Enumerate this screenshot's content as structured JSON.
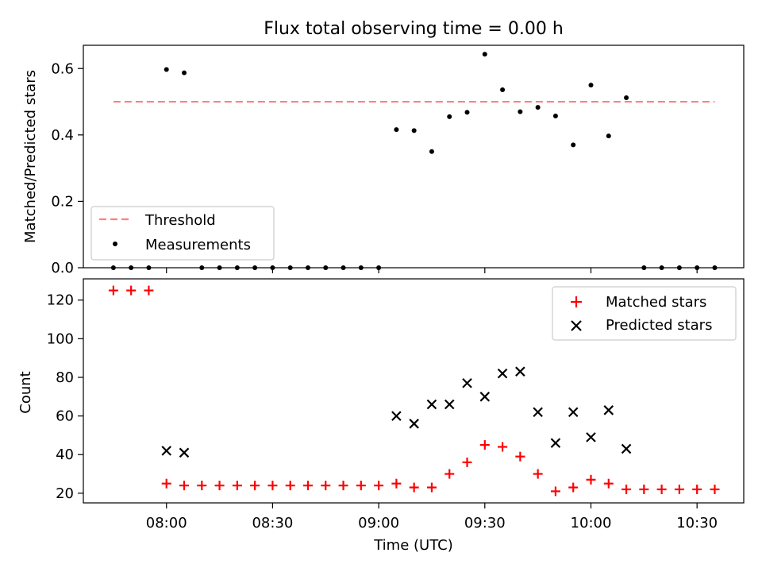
{
  "title": "Flux total observing time = 0.00 h",
  "colors": {
    "threshold": "#ff7f7f",
    "measurements": "#000000",
    "matched": "#ff0000",
    "predicted": "#000000"
  },
  "chart_data": [
    {
      "type": "scatter",
      "ylabel": "Matched/Predicted stars",
      "ylim": [
        0,
        0.67
      ],
      "yticks": [
        0.0,
        0.2,
        0.4,
        0.6
      ],
      "ytick_labels": [
        "0.0",
        "0.2",
        "0.4",
        "0.6"
      ],
      "legend": {
        "location": "lower-left",
        "threshold_label": "Threshold",
        "measurements_label": "Measurements"
      },
      "threshold": {
        "name": "Threshold",
        "value": 0.5,
        "x_start": 465,
        "x_end": 635
      },
      "series": [
        {
          "name": "Measurements",
          "x": [
            465,
            470,
            475,
            480,
            485,
            490,
            495,
            500,
            505,
            510,
            515,
            520,
            525,
            530,
            535,
            540,
            545,
            550,
            555,
            560,
            565,
            570,
            575,
            580,
            585,
            590,
            595,
            600,
            605,
            610,
            615,
            620,
            625,
            630,
            635
          ],
          "values": [
            0,
            0,
            0,
            0.597,
            0.587,
            0,
            0,
            0,
            0,
            0,
            0,
            0,
            0,
            0,
            0,
            0,
            0.416,
            0.413,
            0.35,
            0.455,
            0.468,
            0.643,
            0.536,
            0.47,
            0.483,
            0.457,
            0.37,
            0.55,
            0.397,
            0.512,
            0,
            0,
            0,
            0,
            0
          ]
        }
      ]
    },
    {
      "type": "scatter",
      "ylabel": "Count",
      "xlabel": "Time (UTC)",
      "ylim": [
        15,
        131
      ],
      "yticks": [
        20,
        40,
        60,
        80,
        100,
        120
      ],
      "ytick_labels": [
        "20",
        "40",
        "60",
        "80",
        "100",
        "120"
      ],
      "xlim": [
        456.5,
        643.2
      ],
      "xticks": [
        480,
        510,
        540,
        570,
        600,
        630
      ],
      "xtick_labels": [
        "08:00",
        "08:30",
        "09:00",
        "09:30",
        "10:00",
        "10:30"
      ],
      "legend": {
        "location": "top-right",
        "matched_label": "Matched stars",
        "predicted_label": "Predicted stars"
      },
      "series": [
        {
          "name": "Matched stars",
          "x": [
            465,
            470,
            475,
            480,
            485,
            490,
            495,
            500,
            505,
            510,
            515,
            520,
            525,
            530,
            535,
            540,
            545,
            550,
            555,
            560,
            565,
            570,
            575,
            580,
            585,
            590,
            595,
            600,
            605,
            610,
            615,
            620,
            625,
            630,
            635
          ],
          "values": [
            125,
            125,
            125,
            25,
            24,
            24,
            24,
            24,
            24,
            24,
            24,
            24,
            24,
            24,
            24,
            24,
            25,
            23,
            23,
            30,
            36,
            45,
            44,
            39,
            30,
            21,
            23,
            27,
            25,
            22,
            22,
            22,
            22,
            22,
            22
          ]
        },
        {
          "name": "Predicted stars",
          "x": [
            480,
            485,
            545,
            550,
            555,
            560,
            565,
            570,
            575,
            580,
            585,
            590,
            595,
            600,
            605,
            610
          ],
          "values": [
            42,
            41,
            60,
            56,
            66,
            66,
            77,
            70,
            82,
            83,
            62,
            46,
            62,
            49,
            63,
            43
          ]
        }
      ]
    }
  ]
}
